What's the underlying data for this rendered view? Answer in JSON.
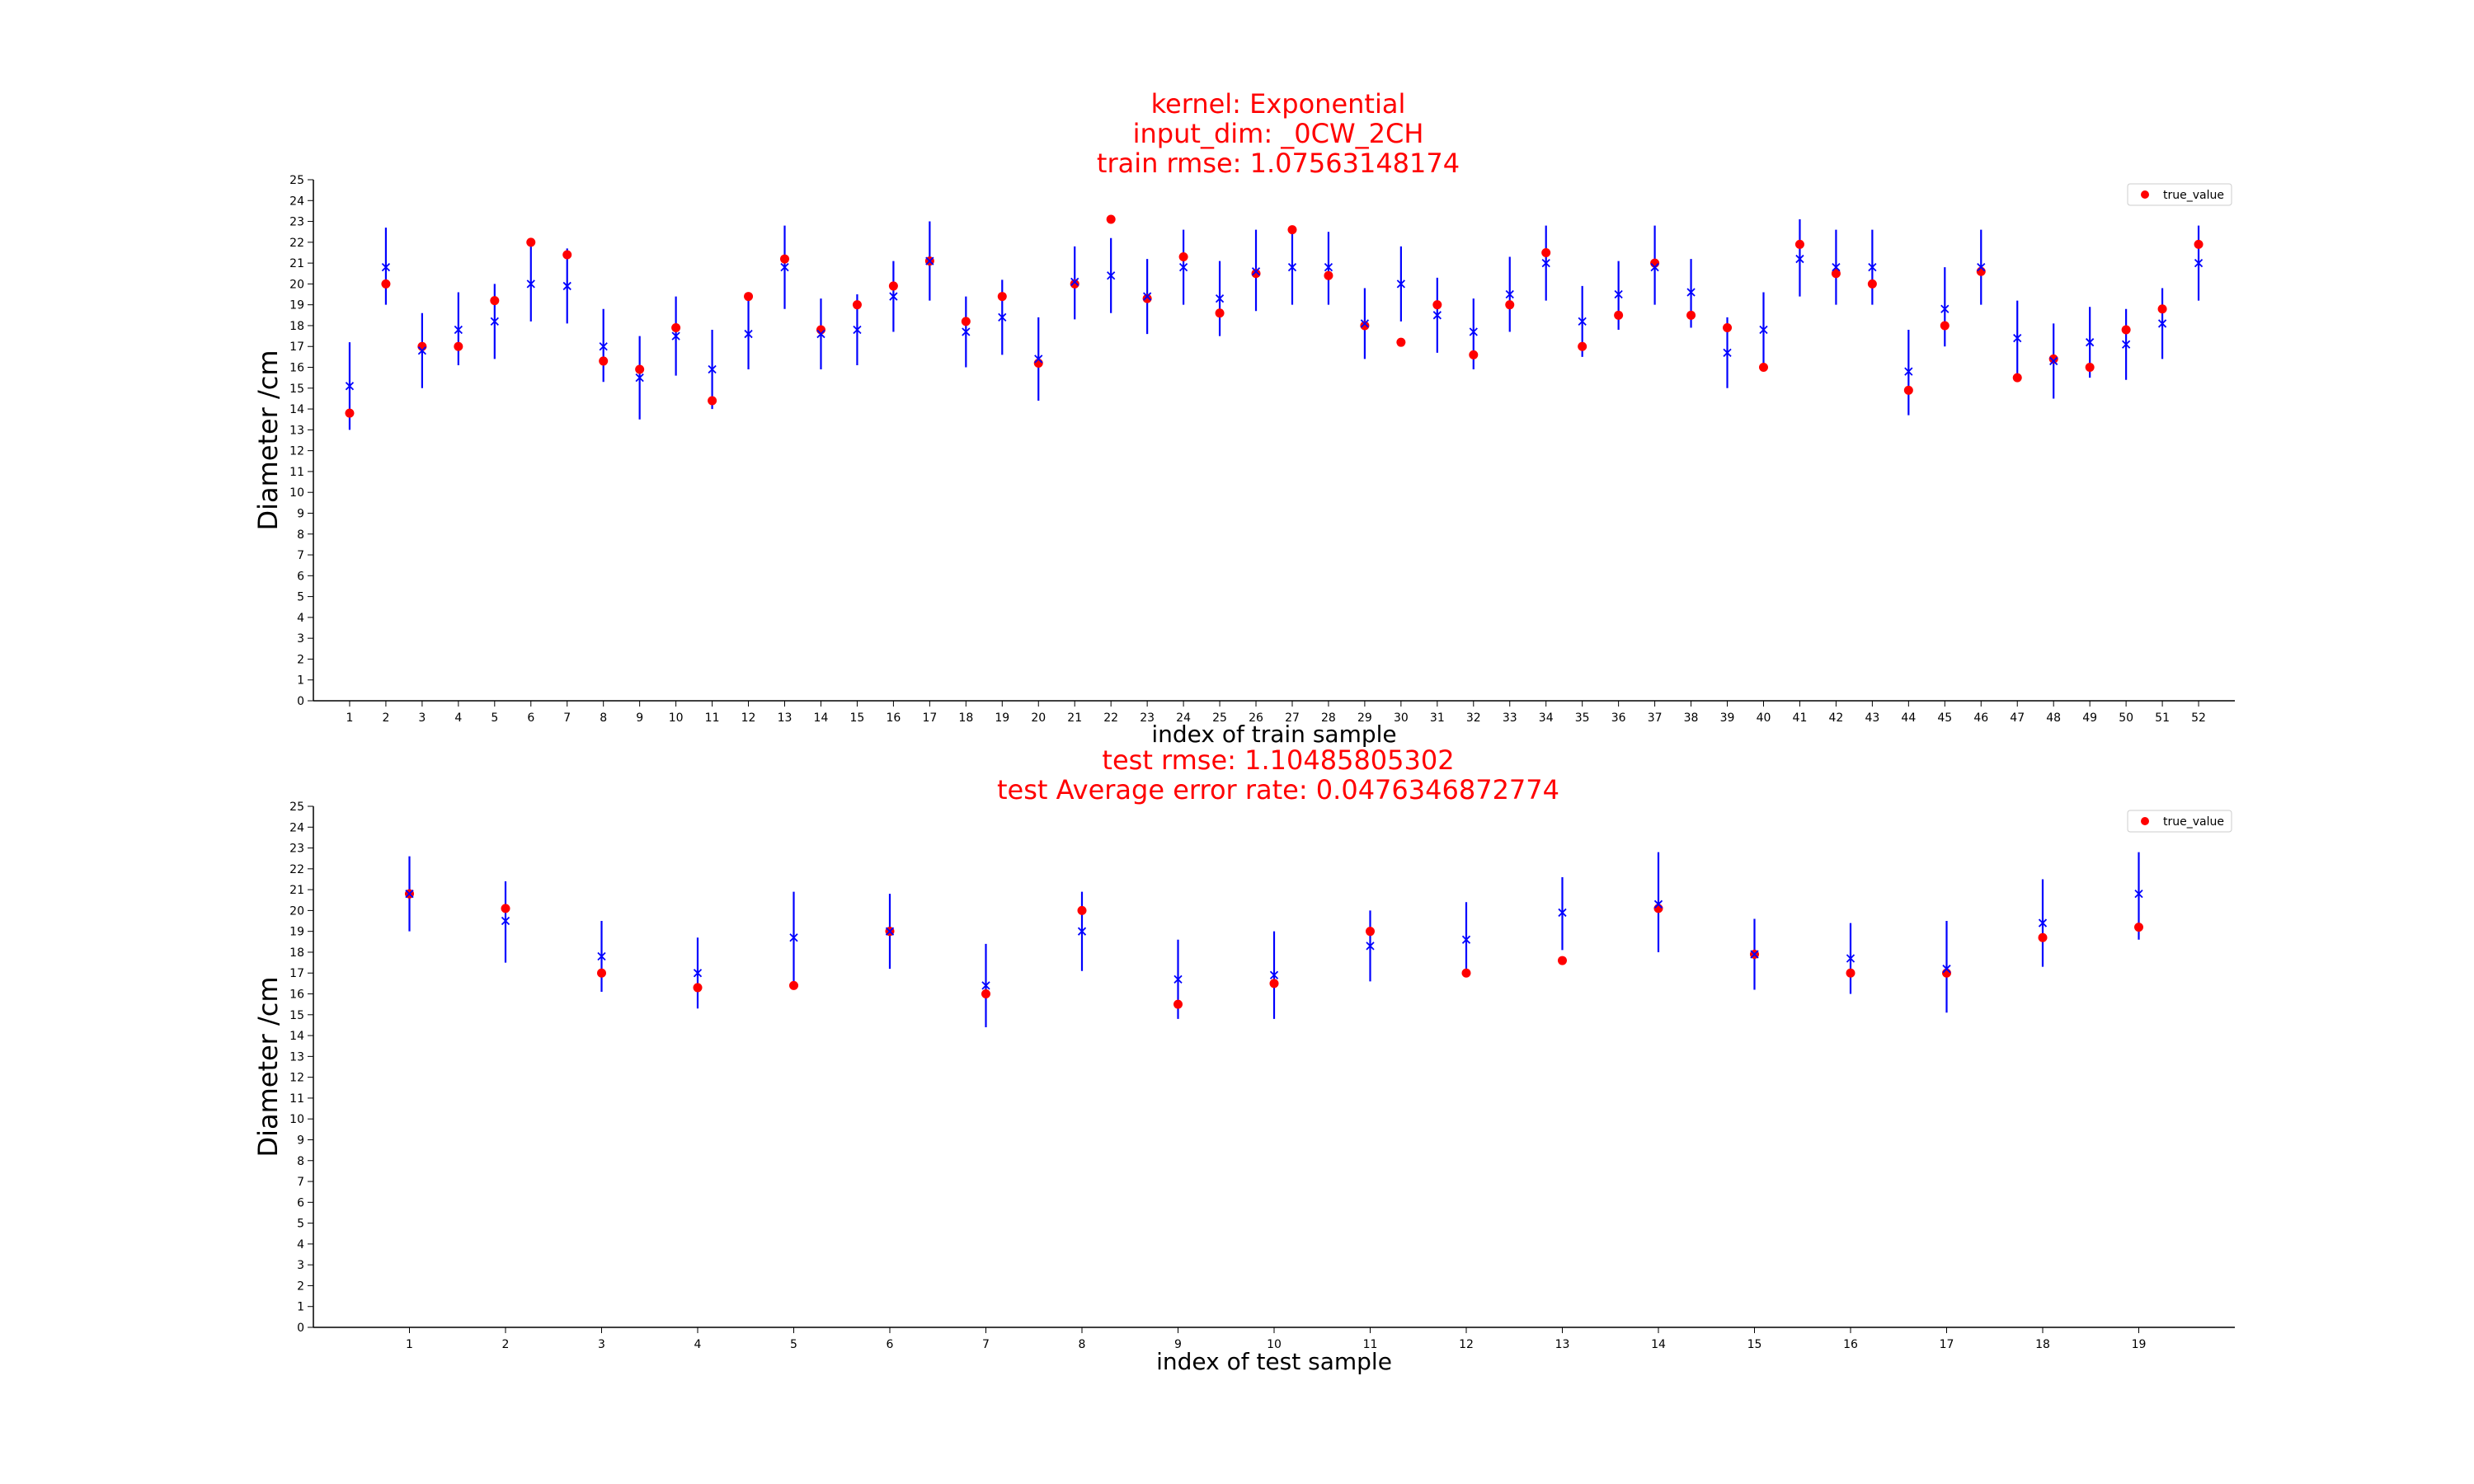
{
  "chart_data": [
    {
      "type": "scatter",
      "title_lines": [
        "kernel: Exponential",
        "input_dim: _0CW_2CH",
        "train rmse: 1.07563148174"
      ],
      "xlabel": "index of train sample",
      "ylabel": "Diameter /cm",
      "ylim": [
        0,
        25
      ],
      "xlim": [
        0,
        53
      ],
      "yticks": [
        0,
        1,
        2,
        3,
        4,
        5,
        6,
        7,
        8,
        9,
        10,
        11,
        12,
        13,
        14,
        15,
        16,
        17,
        18,
        19,
        20,
        21,
        22,
        23,
        24,
        25
      ],
      "categories": [
        "1",
        "2",
        "3",
        "4",
        "5",
        "6",
        "7",
        "8",
        "9",
        "10",
        "11",
        "12",
        "13",
        "14",
        "15",
        "16",
        "17",
        "18",
        "19",
        "20",
        "21",
        "22",
        "23",
        "24",
        "25",
        "26",
        "27",
        "28",
        "29",
        "30",
        "31",
        "32",
        "33",
        "34",
        "35",
        "36",
        "37",
        "38",
        "39",
        "40",
        "41",
        "42",
        "43",
        "44",
        "45",
        "46",
        "47",
        "48",
        "49",
        "50",
        "51",
        "52"
      ],
      "legend": {
        "label": "true_value",
        "placement": "top-right"
      },
      "grid": false,
      "colors": {
        "title": "#ff0000",
        "true_value": "#ff0000",
        "prediction": "#0000ff"
      },
      "series": [
        {
          "name": "true_value",
          "marker": "circle",
          "values": [
            13.8,
            20.0,
            17.0,
            17.0,
            19.2,
            22.0,
            21.4,
            16.3,
            15.9,
            17.9,
            14.4,
            19.4,
            21.2,
            17.8,
            19.0,
            19.9,
            21.1,
            18.2,
            19.4,
            16.2,
            20.0,
            23.1,
            19.3,
            21.3,
            18.6,
            20.5,
            22.6,
            20.4,
            18.0,
            17.2,
            19.0,
            16.6,
            19.0,
            21.5,
            17.0,
            18.5,
            21.0,
            18.5,
            17.9,
            16.0,
            21.9,
            20.5,
            20.0,
            14.9,
            18.0,
            20.6,
            15.5,
            16.4,
            16.0,
            17.8,
            18.8,
            21.9
          ]
        },
        {
          "name": "prediction",
          "marker": "x",
          "values": [
            15.1,
            20.8,
            16.8,
            17.8,
            18.2,
            20.0,
            19.9,
            17.0,
            15.5,
            17.5,
            15.9,
            17.6,
            20.8,
            17.6,
            17.8,
            19.4,
            21.1,
            17.7,
            18.4,
            16.4,
            20.1,
            20.4,
            19.4,
            20.8,
            19.3,
            20.6,
            20.8,
            20.8,
            18.1,
            20.0,
            18.5,
            17.7,
            19.5,
            21.0,
            18.2,
            19.5,
            20.8,
            19.6,
            16.7,
            17.8,
            21.2,
            20.8,
            20.8,
            15.8,
            18.8,
            20.8,
            17.4,
            16.3,
            17.2,
            17.1,
            18.1,
            21.0
          ]
        },
        {
          "name": "confidence_interval",
          "style": "error_bar",
          "lower": [
            13.0,
            19.0,
            15.0,
            16.1,
            16.4,
            18.2,
            18.1,
            15.3,
            13.5,
            15.6,
            14.0,
            15.9,
            18.8,
            15.9,
            16.1,
            17.7,
            19.2,
            16.0,
            16.6,
            14.4,
            18.3,
            18.6,
            17.6,
            19.0,
            17.5,
            18.7,
            19.0,
            19.0,
            16.4,
            18.2,
            16.7,
            15.9,
            17.7,
            19.2,
            16.5,
            17.8,
            19.0,
            17.9,
            15.0,
            16.0,
            19.4,
            19.0,
            19.0,
            13.7,
            17.0,
            19.0,
            15.6,
            14.5,
            15.5,
            15.4,
            16.4,
            19.2
          ],
          "upper": [
            17.2,
            22.7,
            18.6,
            19.6,
            20.0,
            21.8,
            21.7,
            18.8,
            17.5,
            19.4,
            17.8,
            19.4,
            22.8,
            19.3,
            19.5,
            21.1,
            23.0,
            19.4,
            20.2,
            18.4,
            21.8,
            22.2,
            21.2,
            22.6,
            21.1,
            22.6,
            22.6,
            22.5,
            19.8,
            21.8,
            20.3,
            19.3,
            21.3,
            22.8,
            19.9,
            21.1,
            22.8,
            21.2,
            18.4,
            19.6,
            23.1,
            22.6,
            22.6,
            17.8,
            20.8,
            22.6,
            19.2,
            18.1,
            18.9,
            18.8,
            19.8,
            22.8
          ]
        }
      ]
    },
    {
      "type": "scatter",
      "title_lines": [
        "test rmse: 1.10485805302",
        "test Average error rate: 0.0476346872774"
      ],
      "xlabel": "index of test sample",
      "ylabel": "Diameter /cm",
      "ylim": [
        0,
        25
      ],
      "xlim": [
        0,
        20
      ],
      "yticks": [
        0,
        1,
        2,
        3,
        4,
        5,
        6,
        7,
        8,
        9,
        10,
        11,
        12,
        13,
        14,
        15,
        16,
        17,
        18,
        19,
        20,
        21,
        22,
        23,
        24,
        25
      ],
      "categories": [
        "1",
        "2",
        "3",
        "4",
        "5",
        "6",
        "7",
        "8",
        "9",
        "10",
        "11",
        "12",
        "13",
        "14",
        "15",
        "16",
        "17",
        "18",
        "19"
      ],
      "legend": {
        "label": "true_value",
        "placement": "top-right"
      },
      "grid": false,
      "colors": {
        "title": "#ff0000",
        "true_value": "#ff0000",
        "prediction": "#0000ff"
      },
      "series": [
        {
          "name": "true_value",
          "marker": "circle",
          "values": [
            20.8,
            20.1,
            17.0,
            16.3,
            16.4,
            19.0,
            16.0,
            20.0,
            15.5,
            16.5,
            19.0,
            17.0,
            17.6,
            20.1,
            17.9,
            17.0,
            17.0,
            18.7,
            19.2
          ]
        },
        {
          "name": "prediction",
          "marker": "x",
          "values": [
            20.8,
            19.5,
            17.8,
            17.0,
            18.7,
            19.0,
            16.4,
            19.0,
            16.7,
            16.9,
            18.3,
            18.6,
            19.9,
            20.3,
            17.9,
            17.7,
            17.2,
            19.4,
            20.8
          ]
        },
        {
          "name": "confidence_interval",
          "style": "error_bar",
          "lower": [
            19.0,
            17.5,
            16.1,
            15.3,
            16.6,
            17.2,
            14.4,
            17.1,
            14.8,
            14.8,
            16.6,
            16.8,
            18.1,
            18.0,
            16.2,
            16.0,
            15.1,
            17.3,
            18.6
          ],
          "upper": [
            22.6,
            21.4,
            19.5,
            18.7,
            20.9,
            20.8,
            18.4,
            20.9,
            18.6,
            19.0,
            20.0,
            20.4,
            21.6,
            22.8,
            19.6,
            19.4,
            19.5,
            21.5,
            22.8
          ]
        }
      ]
    }
  ]
}
